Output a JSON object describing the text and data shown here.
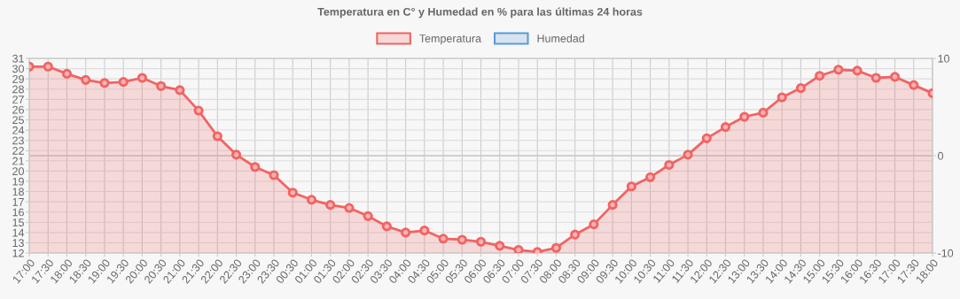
{
  "chart_data": {
    "type": "area",
    "title": "Temperatura en C° y Humedad en % para las últimas 24 horas",
    "categories": [
      "17:00",
      "17:30",
      "18:00",
      "18:30",
      "19:00",
      "19:30",
      "20:00",
      "20:30",
      "21:00",
      "21:30",
      "22:00",
      "22:30",
      "23:00",
      "23:30",
      "00:30",
      "01:00",
      "01:30",
      "02:00",
      "02:30",
      "03:30",
      "04:00",
      "04:30",
      "05:00",
      "05:30",
      "06:00",
      "06:30",
      "07:00",
      "07:30",
      "08:00",
      "08:30",
      "09:00",
      "09:30",
      "10:00",
      "10:30",
      "11:00",
      "11:30",
      "12:00",
      "12:30",
      "13:00",
      "13:30",
      "14:00",
      "14:30",
      "15:00",
      "15:30",
      "16:00",
      "16:30",
      "17:00",
      "17:30",
      "18:00"
    ],
    "series": [
      {
        "name": "Temperatura",
        "color": "#f26363",
        "values": [
          30.2,
          30.2,
          29.5,
          28.9,
          28.6,
          28.7,
          29.1,
          28.3,
          27.9,
          25.9,
          23.4,
          21.6,
          20.4,
          19.6,
          17.9,
          17.2,
          16.7,
          16.4,
          15.6,
          14.6,
          14.0,
          14.2,
          13.4,
          13.3,
          13.1,
          12.7,
          12.3,
          12.1,
          12.5,
          13.8,
          14.8,
          16.7,
          18.5,
          19.4,
          20.6,
          21.6,
          23.2,
          24.3,
          25.3,
          25.7,
          27.2,
          28.1,
          29.3,
          29.9,
          29.8,
          29.1,
          29.2,
          28.4,
          27.6
        ]
      },
      {
        "name": "Humedad",
        "color": "#5b9bd5",
        "values": [
          null,
          null,
          null,
          null,
          null,
          null,
          null,
          null,
          null,
          null,
          null,
          null,
          null,
          null,
          null,
          null,
          null,
          null,
          null,
          null,
          null,
          null,
          null,
          null,
          null,
          null,
          null,
          null,
          null,
          null,
          null,
          null,
          null,
          null,
          null,
          null,
          null,
          null,
          null,
          null,
          null,
          null,
          null,
          null,
          null,
          null,
          null,
          null,
          null
        ]
      }
    ],
    "ylim": [
      12,
      31
    ],
    "yticks": [
      12,
      13,
      14,
      15,
      16,
      17,
      18,
      19,
      20,
      21,
      22,
      23,
      24,
      25,
      26,
      27,
      28,
      29,
      30,
      31
    ],
    "y2lim": [
      -10,
      10
    ],
    "y2ticks": [
      -10,
      0,
      10
    ],
    "grid": true,
    "legend": "top",
    "marker": "circle",
    "line_style": "solid"
  }
}
